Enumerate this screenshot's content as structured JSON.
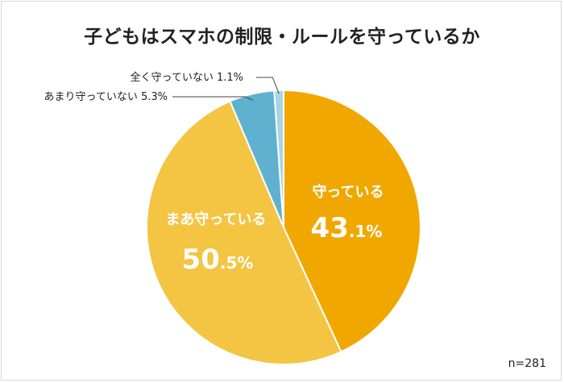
{
  "chart_data": {
    "type": "pie",
    "title": "子どもはスマホの制限・ルールを守っているか",
    "slices": [
      {
        "label": "守っている",
        "value": 43.1,
        "color": "#f0a800",
        "label_color": "#ffffff"
      },
      {
        "label": "まあ守っている",
        "value": 50.5,
        "color": "#f4c443",
        "label_color": "#ffffff"
      },
      {
        "label": "あまり守っていない",
        "value": 5.3,
        "color": "#5fb2cf",
        "label_color": "#222222"
      },
      {
        "label": "全く守っていない",
        "value": 1.1,
        "color": "#a8d4e6",
        "label_color": "#222222"
      }
    ],
    "note": "n=281",
    "label_style": {
      "守っている": {
        "pct_main": "43",
        "pct_dec": ".1%"
      },
      "まあ守っている": {
        "pct_main": "50",
        "pct_dec": ".5%"
      }
    },
    "outside_labels": [
      "全く守っていない 1.1%",
      "あまり守っていない 5.3%"
    ]
  }
}
